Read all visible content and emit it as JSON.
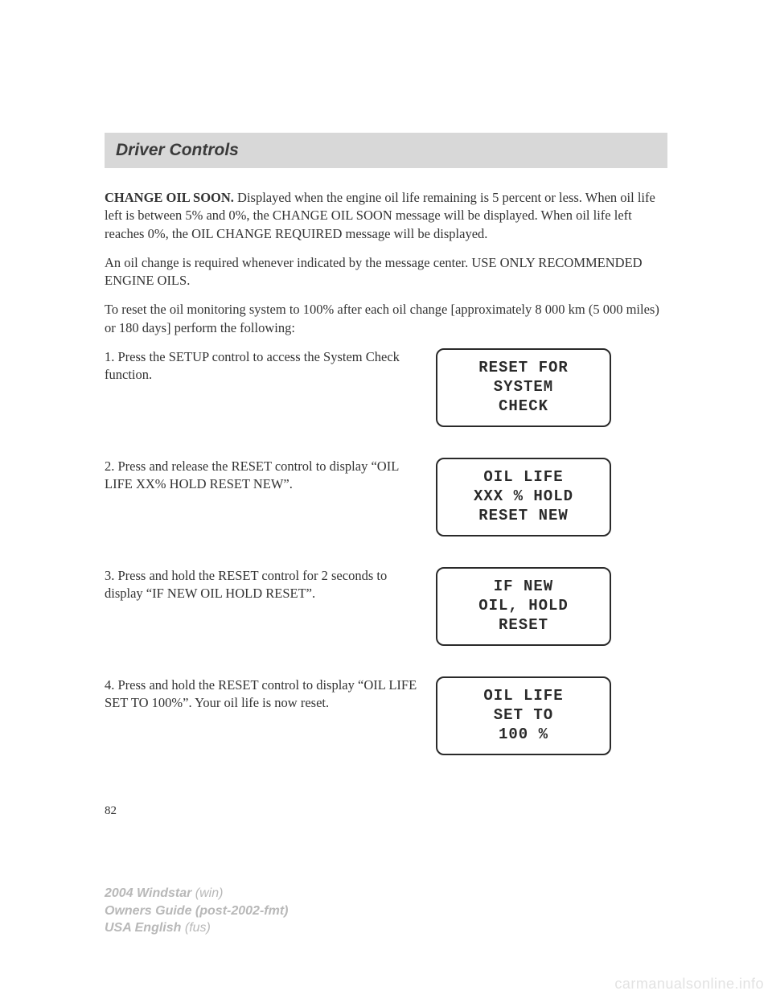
{
  "header": {
    "section_title": "Driver Controls"
  },
  "paragraphs": {
    "p1_bold": "CHANGE OIL SOON.",
    "p1_rest": " Displayed when the engine oil life remaining is 5 percent or less. When oil life left is between 5% and 0%, the CHANGE OIL SOON message will be displayed. When oil life left reaches 0%, the OIL CHANGE REQUIRED message will be displayed.",
    "p2": "An oil change is required whenever indicated by the message center. USE ONLY RECOMMENDED ENGINE OILS.",
    "p3": "To reset the oil monitoring system to 100% after each oil change [approximately 8 000 km (5 000 miles) or 180 days] perform the following:"
  },
  "steps": [
    {
      "text": "1. Press the SETUP control to access the System Check function.",
      "display": {
        "line1": "RESET FOR",
        "line2": "SYSTEM",
        "line3": "CHECK"
      }
    },
    {
      "text": "2. Press and release the RESET control to display “OIL LIFE XX% HOLD RESET NEW”.",
      "display": {
        "line1": "OIL LIFE",
        "line2": "XXX % HOLD",
        "line3": "RESET NEW"
      }
    },
    {
      "text": "3. Press and hold the RESET control for 2 seconds to display “IF NEW OIL HOLD RESET”.",
      "display": {
        "line1": "IF NEW",
        "line2": "OIL, HOLD",
        "line3": "RESET"
      }
    },
    {
      "text": "4. Press and hold the RESET control to display “OIL LIFE SET TO 100%”. Your oil life is now reset.",
      "display": {
        "line1": "OIL LIFE",
        "line2": "SET TO",
        "line3": "100 %"
      }
    }
  ],
  "page_number": "82",
  "footer": {
    "model": "2004 Windstar",
    "model_code": "(win)",
    "guide": "Owners Guide (post-2002-fmt)",
    "lang": "USA English",
    "lang_code": "(fus)"
  },
  "watermark": "carmanualsonline.info"
}
